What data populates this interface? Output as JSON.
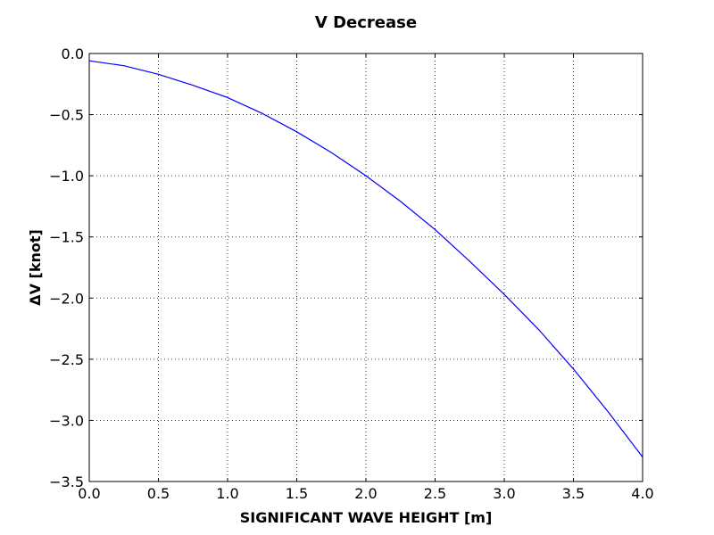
{
  "chart_data": {
    "type": "line",
    "title": "V Decrease",
    "xlabel": "SIGNIFICANT WAVE HEIGHT [m]",
    "ylabel": "ΔV [knot]",
    "xlim": [
      0.0,
      4.0
    ],
    "ylim": [
      -3.5,
      0.0
    ],
    "xticks": [
      "0.0",
      "0.5",
      "1.0",
      "1.5",
      "2.0",
      "2.5",
      "3.0",
      "3.5",
      "4.0"
    ],
    "yticks": [
      "0.0",
      "−0.5",
      "−1.0",
      "−1.5",
      "−2.0",
      "−2.5",
      "−3.0",
      "−3.5"
    ],
    "grid": true,
    "legend": "none",
    "series": [
      {
        "color": "#0000ff",
        "x": [
          0.0,
          0.25,
          0.5,
          0.75,
          1.0,
          1.25,
          1.5,
          1.75,
          2.0,
          2.25,
          2.5,
          2.75,
          3.0,
          3.25,
          3.5,
          3.75,
          4.0
        ],
        "y": [
          -0.06,
          -0.1,
          -0.17,
          -0.26,
          -0.36,
          -0.49,
          -0.64,
          -0.81,
          -1.0,
          -1.21,
          -1.44,
          -1.7,
          -1.97,
          -2.26,
          -2.58,
          -2.93,
          -3.3
        ]
      }
    ]
  }
}
